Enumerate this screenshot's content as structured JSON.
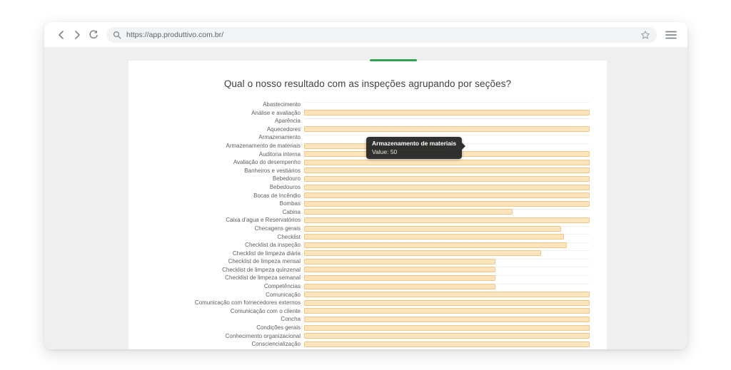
{
  "browser": {
    "url": "https://app.produttivo.com.br/"
  },
  "tooltip": {
    "title": "Armazenamento de materiais",
    "value_label": "Value: 50"
  },
  "colors": {
    "accent_green": "#2ea350",
    "bar_fill": "#fce5bd",
    "bar_border": "#f1c788",
    "tooltip_bg": "#212121",
    "page_bg": "#efefef"
  },
  "chart_data": {
    "type": "bar",
    "orientation": "horizontal",
    "title": "Qual o nosso resultado com as inspeções agrupando por seções?",
    "xlabel": "",
    "ylabel": "",
    "xlim": [
      0,
      100
    ],
    "grid": "subtle row lines",
    "legend": "none",
    "highlight": {
      "category": "Armazenamento de materiais",
      "value": 50
    },
    "categories": [
      "Abastecimento",
      "Análise e avaliação",
      "Aparência",
      "Aquecedores",
      "Armazenamento",
      "Armazenamento de materiais",
      "Auditoria interna",
      "Avaliação do desempenho",
      "Banheiros e vestiários",
      "Bebedouro",
      "Bebedouros",
      "Bocas de Incêndio",
      "Bombas",
      "Cabina",
      "Caixa d'agua e Reservatórios",
      "Checagens gerais",
      "Checklist",
      "Checklist da inspeção",
      "Checklist de limpeza diária",
      "Checklist de limpeza mensal",
      "Checklist de limpeza quinzenal",
      "Checklist de limpeza semanal",
      "Competências",
      "Comunicação",
      "Comunicação com fornecedores externos",
      "Comunicação com o cliente",
      "Concha",
      "Condições gerais",
      "Conhecimento organizacional",
      "Consciencialização"
    ],
    "values": [
      0,
      100,
      0,
      100,
      0,
      50,
      100,
      100,
      100,
      100,
      100,
      100,
      100,
      73,
      100,
      90,
      91,
      92,
      83,
      67,
      67,
      67,
      67,
      100,
      100,
      100,
      100,
      100,
      100,
      100
    ]
  }
}
